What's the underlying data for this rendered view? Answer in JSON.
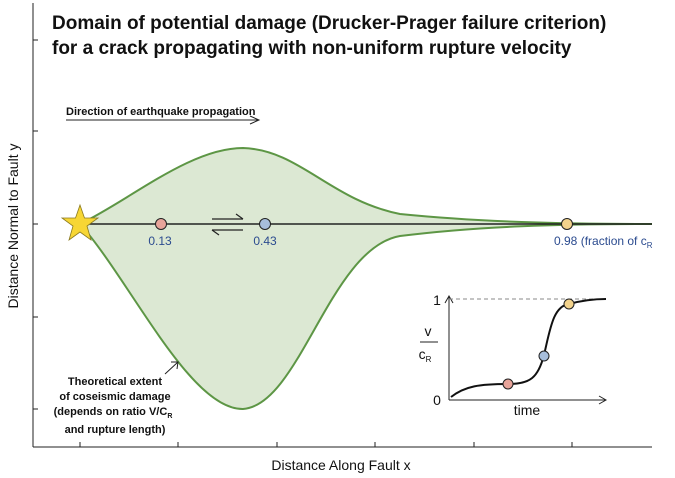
{
  "title": {
    "line1": "Domain of potential damage (Drucker-Prager failure criterion)",
    "line2": "for a crack propagating with non-uniform rupture velocity"
  },
  "axes": {
    "xlabel": "Distance Along Fault x",
    "ylabel": "Distance Normal to Fault y"
  },
  "direction_label": "Direction of earthquake propagation",
  "velocity_markers": [
    {
      "label": "0.13",
      "color": "#e8a49a"
    },
    {
      "label": "0.43",
      "color": "#a7bedc"
    },
    {
      "label": "0.98",
      "color": "#f3d38c"
    }
  ],
  "fraction_note": {
    "prefix": "(fraction of c",
    "subscript": "R"
  },
  "annotation": {
    "line1": "Theoretical extent",
    "line2": "of coseismic damage",
    "line3_prefix": "(depends on ratio V/C",
    "line3_sub": "R",
    "line4": "and rupture length)"
  },
  "inset": {
    "y_top": "1",
    "y_bottom": "0",
    "ylabel_num": "v",
    "ylabel_den": "c",
    "ylabel_den_sub": "R",
    "xlabel": "time"
  },
  "colors": {
    "fill": "#dce8d3",
    "outline": "#5d9645",
    "star": "#f7d635"
  }
}
